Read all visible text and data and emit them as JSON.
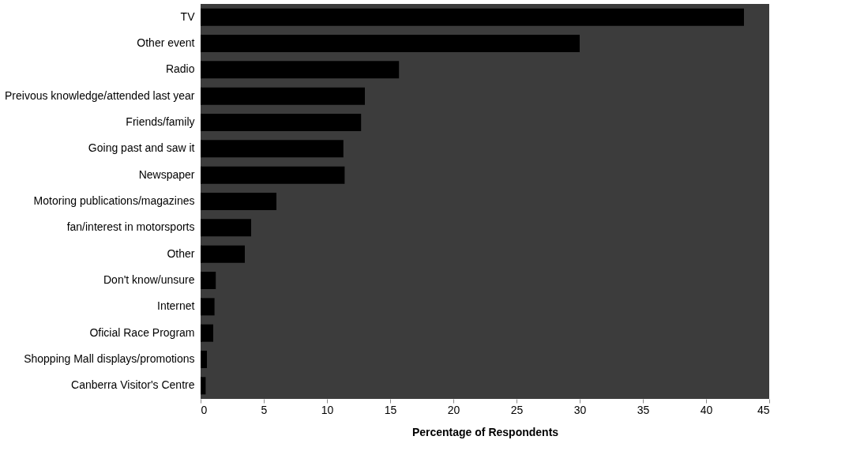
{
  "chart_data": {
    "type": "bar",
    "orientation": "horizontal",
    "xlabel": "Percentage of Respondents",
    "categories": [
      "TV",
      "Other event",
      "Radio",
      "Preivous knowledge/attended last year",
      "Friends/family",
      "Going past and saw it",
      "Newspaper",
      "Motoring publications/magazines",
      "fan/interest in motorsports",
      "Other",
      "Don't know/unsure",
      "Internet",
      "Oficial Race Program",
      "Shopping Mall displays/promotions",
      "Canberra Visitor's Centre"
    ],
    "values": [
      43,
      30,
      15.7,
      13,
      12.7,
      11.3,
      11.4,
      6,
      4,
      3.5,
      1.2,
      1.1,
      1,
      0.5,
      0.4
    ],
    "color": "#000000",
    "xlim": [
      0,
      45
    ],
    "xticks": [
      0,
      5,
      10,
      15,
      20,
      25,
      30,
      35,
      40,
      45
    ],
    "grid": false
  }
}
